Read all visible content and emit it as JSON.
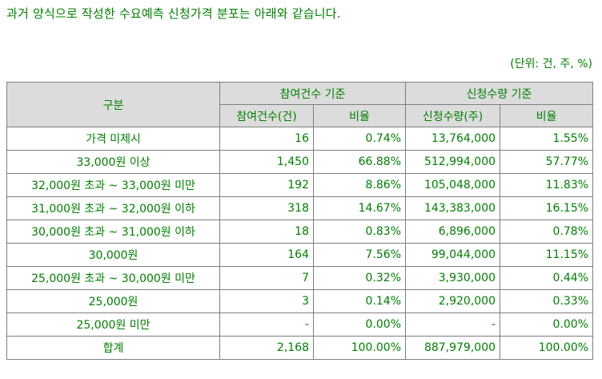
{
  "intro": "과거 양식으로 작성한 수요예측 신청가격 분포는 아래와 같습니다.",
  "unit": "(단위: 건, 주, %)",
  "table": {
    "category_header": "구분",
    "group_headers": [
      "참여건수 기준",
      "신청수량 기준"
    ],
    "sub_headers": [
      "참여건수(건)",
      "비율",
      "신청수량(주)",
      "비율"
    ],
    "rows": [
      {
        "label": "가격 미제시",
        "count": "16",
        "count_ratio": "0.74%",
        "qty": "13,764,000",
        "qty_ratio": "1.55%"
      },
      {
        "label": "33,000원 이상",
        "count": "1,450",
        "count_ratio": "66.88%",
        "qty": "512,994,000",
        "qty_ratio": "57.77%"
      },
      {
        "label": "32,000원 초과 ~ 33,000원 미만",
        "count": "192",
        "count_ratio": "8.86%",
        "qty": "105,048,000",
        "qty_ratio": "11.83%"
      },
      {
        "label": "31,000원 초과 ~ 32,000원 이하",
        "count": "318",
        "count_ratio": "14.67%",
        "qty": "143,383,000",
        "qty_ratio": "16.15%"
      },
      {
        "label": "30,000원 초과 ~ 31,000원 이하",
        "count": "18",
        "count_ratio": "0.83%",
        "qty": "6,896,000",
        "qty_ratio": "0.78%"
      },
      {
        "label": "30,000원",
        "count": "164",
        "count_ratio": "7.56%",
        "qty": "99,044,000",
        "qty_ratio": "11.15%"
      },
      {
        "label": "25,000원 초과 ~ 30,000원 미만",
        "count": "7",
        "count_ratio": "0.32%",
        "qty": "3,930,000",
        "qty_ratio": "0.44%"
      },
      {
        "label": "25,000원",
        "count": "3",
        "count_ratio": "0.14%",
        "qty": "2,920,000",
        "qty_ratio": "0.33%"
      },
      {
        "label": "25,000원 미만",
        "count": "-",
        "count_ratio": "0.00%",
        "qty": "-",
        "qty_ratio": "0.00%"
      },
      {
        "label": "합계",
        "count": "2,168",
        "count_ratio": "100.00%",
        "qty": "887,979,000",
        "qty_ratio": "100.00%"
      }
    ]
  }
}
